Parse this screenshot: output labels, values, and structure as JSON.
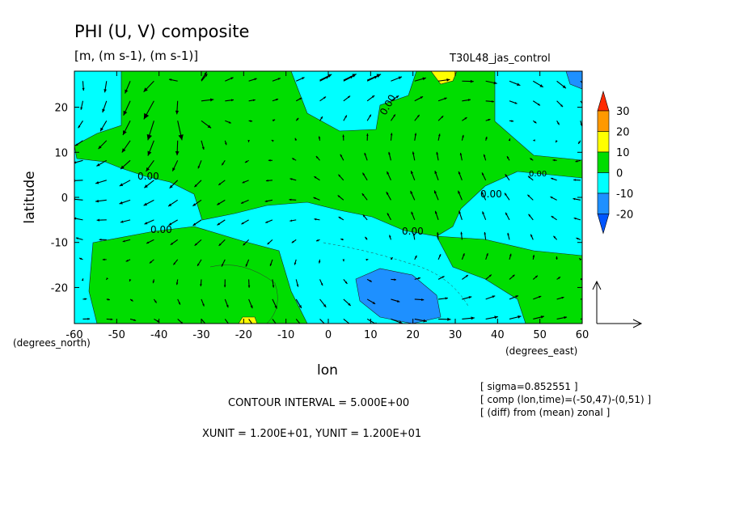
{
  "chart_data": {
    "type": "heatmap",
    "title": "PHI (U, V) composite",
    "subtitle": "[m, (m s-1), (m s-1)]",
    "dataset_label": "T30L48_jas_control",
    "xlabel": "lon",
    "ylabel": "latitude",
    "x_unit_label": "(degrees_east)",
    "y_unit_label": "(degrees_north)",
    "xlim": [
      -60,
      60
    ],
    "ylim": [
      -28,
      28
    ],
    "x_ticks": [
      "-60",
      "-50",
      "-40",
      "-30",
      "-20",
      "-10",
      "0",
      "10",
      "20",
      "30",
      "40",
      "50",
      "60"
    ],
    "y_ticks": [
      "20",
      "10",
      "0",
      "-10",
      "-20"
    ],
    "contour_interval": "CONTOUR INTERVAL = 5.000E+00",
    "vector_units": "XUNIT = 1.200E+01, YUNIT = 1.200E+01",
    "notes": [
      "[ sigma=0.852551 ]",
      "[ comp (lon,time)=(-50,47)-(0,51) ]",
      "[ (diff) from (mean) zonal ]"
    ],
    "contour_labels": [
      "0.00",
      "0.00",
      "0.00",
      "0.00",
      "0.00",
      "0.00"
    ],
    "colorbar": {
      "levels": [
        "30",
        "20",
        "10",
        "0",
        "-10",
        "-20"
      ],
      "colors": [
        "#ff2a00",
        "#ff9900",
        "#ffff00",
        "#00dd00",
        "#00ffff",
        "#1e90ff",
        "#0055ff"
      ]
    }
  }
}
